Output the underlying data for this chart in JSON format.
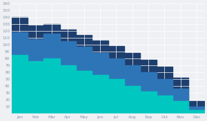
{
  "months": [
    "Jan",
    "Feb",
    "Mar",
    "Apr",
    "May",
    "Jun",
    "Jul",
    "Aug",
    "Sep",
    "Oct",
    "Nov",
    "Dec"
  ],
  "series_top": [
    140,
    128,
    130,
    122,
    114,
    106,
    98,
    88,
    78,
    68,
    52,
    18
  ],
  "series_mid": [
    118,
    108,
    116,
    105,
    97,
    88,
    80,
    70,
    60,
    50,
    36,
    10
  ],
  "series_bot": [
    85,
    76,
    80,
    70,
    62,
    56,
    50,
    40,
    32,
    26,
    18,
    5
  ],
  "color_top": "#1e3f6e",
  "color_mid": "#2e75b8",
  "color_bot": "#00c8c0",
  "bg_color": "#eef0f4",
  "grid_color": "#ffffff",
  "ylim_max": 160,
  "ytick_step": 10,
  "tick_fontsize": 4.2,
  "label_color": "#8899aa"
}
